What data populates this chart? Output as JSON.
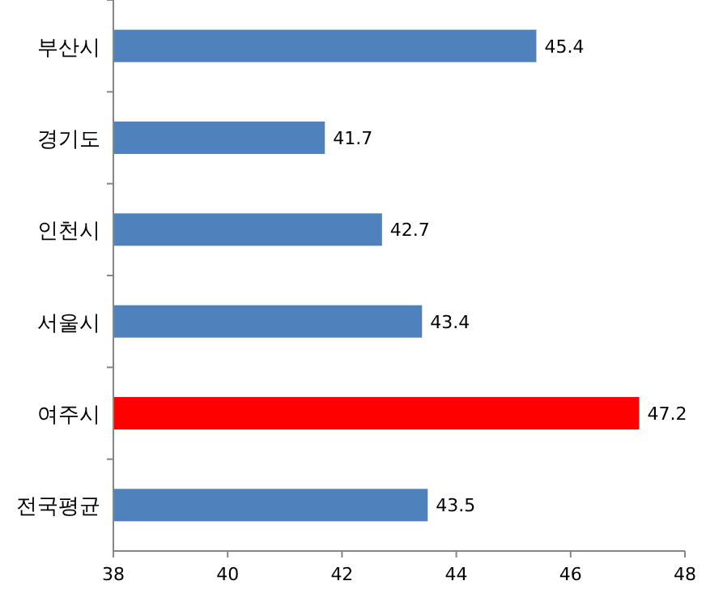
{
  "chart_data": {
    "type": "bar",
    "orientation": "horizontal",
    "categories": [
      "부산시",
      "경기도",
      "인천시",
      "서울시",
      "여주시",
      "전국평균"
    ],
    "values": [
      45.4,
      41.7,
      42.7,
      43.4,
      47.2,
      43.5
    ],
    "colors": [
      "#4f81bd",
      "#4f81bd",
      "#4f81bd",
      "#4f81bd",
      "#ff0000",
      "#4f81bd"
    ],
    "xlim": [
      38,
      48
    ],
    "xticks": [
      38,
      40,
      42,
      44,
      46,
      48
    ],
    "data_labels": true
  }
}
